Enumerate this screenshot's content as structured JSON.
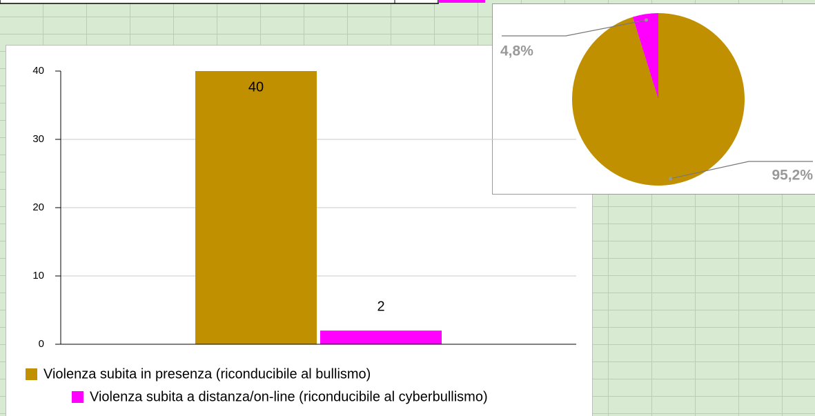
{
  "chart_data": [
    {
      "type": "bar",
      "categories": [
        null
      ],
      "series": [
        {
          "name": "Violenza subita in presenza (riconducibile al bullismo)",
          "color": "#c09000",
          "values": [
            40
          ]
        },
        {
          "name": "Violenza subita a distanza/on-line (riconducibile al cyberbullismo)",
          "color": "#ff00ff",
          "values": [
            2
          ]
        }
      ],
      "ylim": [
        0,
        40
      ],
      "yticks": [
        0,
        10,
        20,
        30,
        40
      ],
      "grid": true
    },
    {
      "type": "pie",
      "values": [
        95.2,
        4.8
      ],
      "value_labels": [
        "95,2%",
        "4,8%"
      ],
      "colors": [
        "#c09000",
        "#ff00ff"
      ]
    }
  ]
}
